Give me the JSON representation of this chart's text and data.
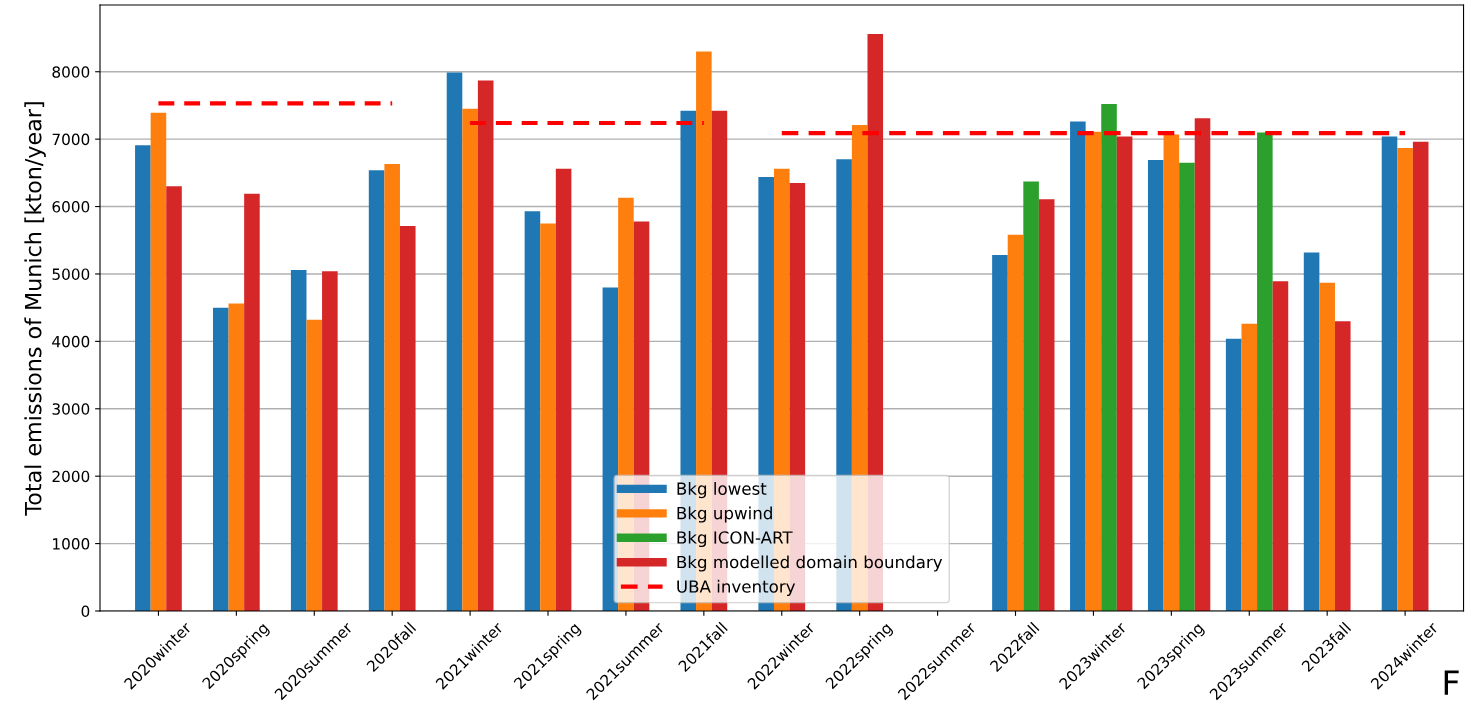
{
  "chart_data": {
    "type": "bar",
    "ylabel": "Total emissions of Munich [kton/year]",
    "categories": [
      "2020winter",
      "2020spring",
      "2020summer",
      "2020fall",
      "2021winter",
      "2021spring",
      "2021summer",
      "2021fall",
      "2022winter",
      "2022spring",
      "2022summer",
      "2022fall",
      "2023winter",
      "2023spring",
      "2023summer",
      "2023fall",
      "2024winter"
    ],
    "series": [
      {
        "name": "Bkg lowest",
        "color": "#1f77b4",
        "values": [
          6910,
          4500,
          5060,
          6540,
          7990,
          5930,
          4800,
          7420,
          6440,
          6700,
          null,
          5280,
          7260,
          6690,
          4040,
          5320,
          7040
        ]
      },
      {
        "name": "Bkg upwind",
        "color": "#ff7f0e",
        "values": [
          7390,
          4560,
          4320,
          6630,
          7450,
          5750,
          6130,
          8300,
          6560,
          7210,
          null,
          5580,
          7110,
          7070,
          4260,
          4870,
          6870
        ]
      },
      {
        "name": "Bkg ICON-ART",
        "color": "#2ca02c",
        "values": [
          null,
          null,
          null,
          null,
          null,
          null,
          null,
          null,
          null,
          null,
          null,
          6370,
          7520,
          6650,
          7100,
          null,
          null
        ]
      },
      {
        "name": "Bkg modelled domain boundary",
        "color": "#d62728",
        "values": [
          6300,
          6190,
          5040,
          5710,
          7870,
          6560,
          5780,
          7420,
          6350,
          8560,
          null,
          6110,
          7040,
          7310,
          4890,
          4300,
          6960
        ]
      },
      {
        "name": "UBA inventory",
        "type": "line",
        "line_style": "dashed",
        "color": "#ff0000",
        "values": [
          7530,
          7530,
          7530,
          7530,
          null,
          null,
          null,
          null,
          null,
          null,
          null,
          null,
          null,
          null,
          null,
          null,
          null
        ]
      },
      {
        "type": "line",
        "line_style": "dashed",
        "color": "#ff0000",
        "values": [
          null,
          null,
          null,
          null,
          7240,
          7240,
          7240,
          7240,
          null,
          null,
          null,
          null,
          null,
          null,
          null,
          null,
          null
        ]
      },
      {
        "type": "line",
        "line_style": "dashed",
        "color": "#ff0000",
        "values": [
          null,
          null,
          null,
          null,
          null,
          null,
          null,
          null,
          7090,
          7090,
          7090,
          7090,
          7090,
          7090,
          7090,
          7090,
          7090
        ]
      }
    ],
    "ylim": [
      0,
      8990
    ],
    "yticks": [
      0,
      1000,
      2000,
      3000,
      4000,
      5000,
      6000,
      7000,
      8000
    ],
    "grid": "y",
    "legend": "bottom",
    "annotations": [
      "F"
    ]
  }
}
